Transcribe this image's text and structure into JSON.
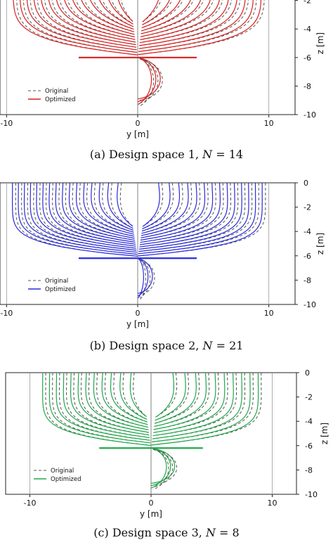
{
  "chart_data": [
    {
      "type": "line",
      "caption": "(a) Design space 1, N = 14",
      "caption_parts": {
        "pre": "(a) Design space 1, ",
        "n": "N",
        "eq": " = 14"
      },
      "xlabel": "y [m]",
      "ylabel": "z [m]",
      "xlim": [
        -10.5,
        12
      ],
      "ylim": [
        -10,
        0
      ],
      "xticks": [
        -10,
        0,
        10
      ],
      "yticks": [
        -2,
        -4,
        -6,
        -8,
        -10
      ],
      "series": [
        {
          "name": "Original",
          "style": "dashed",
          "color": "#555555"
        },
        {
          "name": "Optimized",
          "style": "solid",
          "color": "#d62020"
        }
      ],
      "legend": "bottom-left",
      "grid": false
    },
    {
      "type": "line",
      "caption": "(b) Design space 2, N = 21",
      "caption_parts": {
        "pre": "(b) Design space 2, ",
        "n": "N",
        "eq": " = 21"
      },
      "xlabel": "y [m]",
      "ylabel": "z [m]",
      "xlim": [
        -10.5,
        12
      ],
      "ylim": [
        -10,
        0
      ],
      "xticks": [
        -10,
        0,
        10
      ],
      "yticks": [
        0,
        -2,
        -4,
        -6,
        -8,
        -10
      ],
      "series": [
        {
          "name": "Original",
          "style": "dashed",
          "color": "#555555"
        },
        {
          "name": "Optimized",
          "style": "solid",
          "color": "#2a2ae0"
        }
      ],
      "legend": "bottom-left",
      "grid": false
    },
    {
      "type": "line",
      "caption": "(c) Design space 3, N = 8",
      "caption_parts": {
        "pre": "(c) Design space 3, ",
        "n": "N",
        "eq": " = 8"
      },
      "xlabel": "y [m]",
      "ylabel": "z [m]",
      "xlim": [
        -12,
        12
      ],
      "ylim": [
        -10,
        0
      ],
      "xticks": [
        -10,
        0,
        10
      ],
      "yticks": [
        0,
        -2,
        -4,
        -6,
        -8,
        -10
      ],
      "series": [
        {
          "name": "Original",
          "style": "dashed",
          "color": "#555555"
        },
        {
          "name": "Optimized",
          "style": "solid",
          "color": "#20a84a"
        }
      ],
      "legend": "bottom-left",
      "grid": false
    }
  ]
}
